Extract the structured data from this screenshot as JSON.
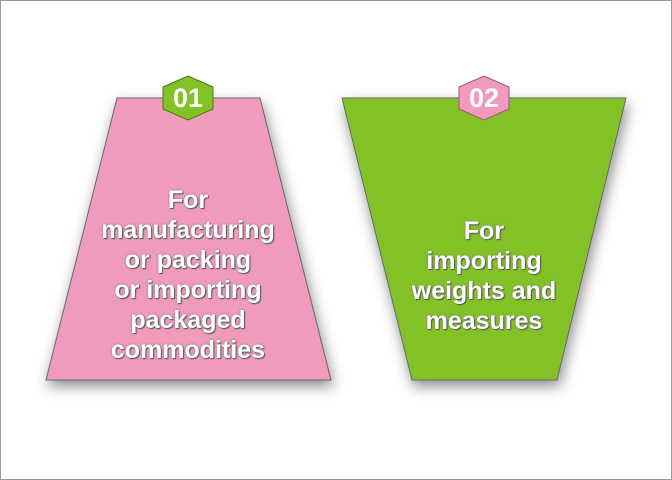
{
  "colors": {
    "pink": "#f09abd",
    "green": "#83c226"
  },
  "cards": [
    {
      "number": "01",
      "lines": [
        "For",
        "manufacturing",
        "or packing",
        "or importing",
        "packaged",
        "commodities"
      ],
      "fill": "#f09abd",
      "badge": "#83c226"
    },
    {
      "number": "02",
      "lines": [
        "For",
        "importing",
        "weights and",
        "measures"
      ],
      "fill": "#83c226",
      "badge": "#f09abd"
    }
  ]
}
